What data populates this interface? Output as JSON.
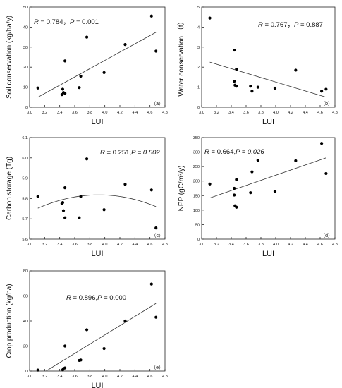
{
  "chart_data": [
    {
      "type": "scatter",
      "panel_label": "（a）",
      "stat_text": "R = 0.784，P = 0.001",
      "xlabel": "LUI",
      "ylabel": "Soil conservation (kg/ha/y)",
      "xlim": [
        3.0,
        4.8
      ],
      "ylim": [
        0,
        50
      ],
      "xticks": [
        "3.0",
        "3.2",
        "3.4",
        "3.6",
        "3.8",
        "4.0",
        "4.2",
        "4.4",
        "4.6",
        "4.8"
      ],
      "yticks": [
        "0",
        "10",
        "20",
        "30",
        "40",
        "50"
      ],
      "points": [
        {
          "x": 3.11,
          "y": 9.6
        },
        {
          "x": 3.44,
          "y": 9.0
        },
        {
          "x": 3.43,
          "y": 6.3
        },
        {
          "x": 3.45,
          "y": 7.3
        },
        {
          "x": 3.47,
          "y": 6.9
        },
        {
          "x": 3.47,
          "y": 23.1
        },
        {
          "x": 3.66,
          "y": 9.8
        },
        {
          "x": 3.68,
          "y": 15.5
        },
        {
          "x": 3.76,
          "y": 35.0
        },
        {
          "x": 3.99,
          "y": 17.3
        },
        {
          "x": 4.27,
          "y": 31.3
        },
        {
          "x": 4.62,
          "y": 45.5
        },
        {
          "x": 4.68,
          "y": 28.0
        }
      ],
      "fit": {
        "kind": "linear",
        "x0": 3.11,
        "y0": 5.0,
        "x1": 4.68,
        "y1": 37.4
      }
    },
    {
      "type": "scatter",
      "panel_label": "（b）",
      "stat_text": "R = 0.767，P = 0.887",
      "xlabel": "LUI",
      "ylabel": "Water conservation （t）",
      "xlim": [
        3.0,
        4.8
      ],
      "ylim": [
        0,
        5
      ],
      "xticks": [
        "3.0",
        "3.2",
        "3.4",
        "3.6",
        "3.8",
        "4.0",
        "4.2",
        "4.4",
        "4.6",
        "4.8"
      ],
      "yticks": [
        "0",
        "1",
        "2",
        "3",
        "4",
        "5"
      ],
      "points": [
        {
          "x": 3.11,
          "y": 4.45
        },
        {
          "x": 3.44,
          "y": 2.85
        },
        {
          "x": 3.44,
          "y": 1.3
        },
        {
          "x": 3.45,
          "y": 1.1
        },
        {
          "x": 3.47,
          "y": 1.9
        },
        {
          "x": 3.47,
          "y": 1.05
        },
        {
          "x": 3.66,
          "y": 1.05
        },
        {
          "x": 3.68,
          "y": 0.8
        },
        {
          "x": 3.76,
          "y": 1.0
        },
        {
          "x": 3.99,
          "y": 0.95
        },
        {
          "x": 4.27,
          "y": 1.85
        },
        {
          "x": 4.62,
          "y": 0.8
        },
        {
          "x": 4.68,
          "y": 0.9
        }
      ],
      "fit": {
        "kind": "linear",
        "x0": 3.11,
        "y0": 2.25,
        "x1": 4.68,
        "y1": 0.5
      }
    },
    {
      "type": "scatter",
      "panel_label": "（c）",
      "stat_text": "R = 0.251,P = 0.502",
      "xlabel": "LUI",
      "ylabel": "Carbon storage (Tg)",
      "xlim": [
        3.0,
        4.8
      ],
      "ylim": [
        5.6,
        6.1
      ],
      "xticks": [
        "3.0",
        "3.2",
        "3.4",
        "3.6",
        "3.8",
        "4.0",
        "4.2",
        "4.4",
        "4.6",
        "4.8"
      ],
      "yticks": [
        "5.6",
        "5.7",
        "5.8",
        "5.9",
        "6.0",
        "6.1"
      ],
      "points": [
        {
          "x": 3.11,
          "y": 5.81
        },
        {
          "x": 3.43,
          "y": 5.775
        },
        {
          "x": 3.44,
          "y": 5.78
        },
        {
          "x": 3.45,
          "y": 5.74
        },
        {
          "x": 3.47,
          "y": 5.705
        },
        {
          "x": 3.47,
          "y": 5.853
        },
        {
          "x": 3.66,
          "y": 5.705
        },
        {
          "x": 3.68,
          "y": 5.81
        },
        {
          "x": 3.76,
          "y": 5.995
        },
        {
          "x": 3.99,
          "y": 5.745
        },
        {
          "x": 4.27,
          "y": 5.87
        },
        {
          "x": 4.62,
          "y": 5.842
        },
        {
          "x": 4.68,
          "y": 5.655
        }
      ],
      "fit": {
        "kind": "quadratic",
        "vertex_x": 3.92,
        "vertex_y": 5.818,
        "a": -0.1,
        "x0": 3.11,
        "x1": 4.68
      }
    },
    {
      "type": "scatter",
      "panel_label": "（d）",
      "stat_text": "R = 0.664,P = 0.026",
      "xlabel": "LUI",
      "ylabel": "NPP (gC/m²/y)",
      "xlim": [
        3.0,
        4.8
      ],
      "ylim": [
        0,
        350
      ],
      "xticks": [
        "3.0",
        "3.2",
        "3.4",
        "3.6",
        "3.8",
        "4.0",
        "4.2",
        "4.4",
        "4.6",
        "4.8"
      ],
      "yticks": [
        "0",
        "50",
        "100",
        "150",
        "200",
        "250",
        "300",
        "350"
      ],
      "points": [
        {
          "x": 3.11,
          "y": 190
        },
        {
          "x": 3.44,
          "y": 175
        },
        {
          "x": 3.44,
          "y": 152
        },
        {
          "x": 3.45,
          "y": 115
        },
        {
          "x": 3.47,
          "y": 205
        },
        {
          "x": 3.47,
          "y": 110
        },
        {
          "x": 3.66,
          "y": 160
        },
        {
          "x": 3.68,
          "y": 232
        },
        {
          "x": 3.76,
          "y": 272
        },
        {
          "x": 3.99,
          "y": 165
        },
        {
          "x": 4.27,
          "y": 270
        },
        {
          "x": 4.62,
          "y": 330
        },
        {
          "x": 4.68,
          "y": 226
        }
      ],
      "fit": {
        "kind": "linear",
        "x0": 3.11,
        "y0": 142,
        "x1": 4.68,
        "y1": 280
      }
    },
    {
      "type": "scatter",
      "panel_label": "（e）",
      "stat_text": "R = 0.896,P = 0.000",
      "xlabel": "LUI",
      "ylabel": "Crop production (kg/ha)",
      "xlim": [
        3.0,
        4.8
      ],
      "ylim": [
        0,
        80
      ],
      "xticks": [
        "3.0",
        "3.2",
        "3.4",
        "3.6",
        "3.8",
        "4.0",
        "4.2",
        "4.4",
        "4.6",
        "4.8"
      ],
      "yticks": [
        "0",
        "20",
        "40",
        "60",
        "80"
      ],
      "points": [
        {
          "x": 3.11,
          "y": 0.8
        },
        {
          "x": 3.44,
          "y": 1.0
        },
        {
          "x": 3.45,
          "y": 2.0
        },
        {
          "x": 3.47,
          "y": 2.5
        },
        {
          "x": 3.47,
          "y": 20.0
        },
        {
          "x": 3.66,
          "y": 8.5
        },
        {
          "x": 3.68,
          "y": 8.8
        },
        {
          "x": 3.76,
          "y": 33.0
        },
        {
          "x": 3.99,
          "y": 18.0
        },
        {
          "x": 4.27,
          "y": 40.0
        },
        {
          "x": 4.62,
          "y": 69.5
        },
        {
          "x": 4.68,
          "y": 43.0
        }
      ],
      "fit": {
        "kind": "linear",
        "x0": 3.11,
        "y0": -4,
        "x1": 4.68,
        "y1": 54
      }
    }
  ]
}
